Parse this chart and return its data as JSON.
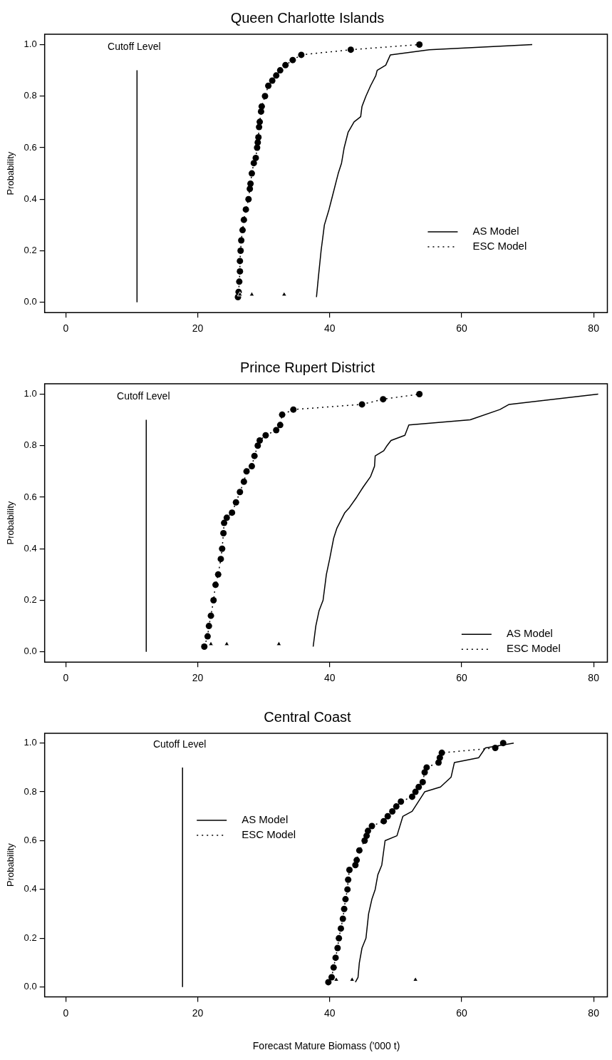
{
  "chart_data": [
    {
      "type": "line",
      "title": "Queen Charlotte Islands",
      "ylabel": "Probability",
      "xlim": [
        -3.2,
        82.2
      ],
      "xticks": [
        0,
        20,
        40,
        60,
        80
      ],
      "ylim": [
        -0.04,
        1.04
      ],
      "yticks": [
        {
          "value": 0,
          "label": "0.0"
        },
        {
          "value": 0.2,
          "label": "0.2"
        },
        {
          "value": 0.4,
          "label": "0.4"
        },
        {
          "value": 0.6,
          "label": "0.6"
        },
        {
          "value": 0.8,
          "label": "0.8"
        },
        {
          "value": 1,
          "label": "1.0"
        }
      ],
      "grid": false,
      "legend": "right",
      "series": [
        {
          "name": "AS Model",
          "color": "#000000",
          "line_style": "solid",
          "marker": "none",
          "x": [
            38.0,
            38.3,
            38.7,
            39.2,
            39.9,
            40.3,
            41.3,
            41.8,
            42.2,
            42.8,
            43.7,
            44.7,
            44.9,
            45.5,
            46.2,
            47.0,
            47.2,
            48.5,
            49.2,
            55.1,
            70.7
          ],
          "values": [
            0.02,
            0.1,
            0.2,
            0.3,
            0.36,
            0.4,
            0.5,
            0.54,
            0.6,
            0.66,
            0.7,
            0.72,
            0.76,
            0.8,
            0.84,
            0.88,
            0.9,
            0.92,
            0.96,
            0.98,
            1.0
          ]
        },
        {
          "name": "ESC Model",
          "color": "#000000",
          "line_style": "dotted",
          "marker": "circle",
          "x": [
            26.1,
            26.2,
            26.3,
            26.4,
            26.4,
            26.5,
            26.6,
            26.8,
            27.0,
            27.3,
            27.7,
            27.9,
            28.0,
            28.2,
            28.5,
            28.8,
            29.0,
            29.1,
            29.2,
            29.3,
            29.4,
            29.6,
            29.7,
            30.2,
            30.7,
            31.3,
            31.9,
            32.5,
            33.3,
            34.4,
            35.7,
            43.2,
            53.6
          ],
          "values": [
            0.02,
            0.04,
            0.08,
            0.12,
            0.16,
            0.2,
            0.24,
            0.28,
            0.32,
            0.36,
            0.4,
            0.44,
            0.46,
            0.5,
            0.54,
            0.56,
            0.6,
            0.62,
            0.64,
            0.68,
            0.7,
            0.74,
            0.76,
            0.8,
            0.84,
            0.86,
            0.88,
            0.9,
            0.92,
            0.94,
            0.96,
            0.98,
            1.0
          ]
        },
        {
          "color": "#000000",
          "line_style": "solid",
          "marker": "none",
          "x": [
            10.8,
            10.8
          ],
          "values": [
            0,
            0.9
          ]
        },
        {
          "type": "scatter",
          "color": "#000000",
          "marker": "triangle",
          "x": [
            26.4,
            28.2,
            33.1
          ],
          "values": [
            0.03,
            0.03,
            0.03
          ]
        }
      ],
      "annotations": [
        {
          "text": "Cutoff Level",
          "x": 10.8,
          "y": 0.9
        }
      ]
    },
    {
      "type": "line",
      "title": "Prince Rupert District",
      "ylabel": "Probability",
      "xlim": [
        -3.2,
        82.2
      ],
      "xticks": [
        0,
        20,
        40,
        60,
        80
      ],
      "ylim": [
        -0.04,
        1.04
      ],
      "yticks": [
        {
          "value": 0,
          "label": "0.0"
        },
        {
          "value": 0.2,
          "label": "0.2"
        },
        {
          "value": 0.4,
          "label": "0.4"
        },
        {
          "value": 0.6,
          "label": "0.6"
        },
        {
          "value": 0.8,
          "label": "0.8"
        },
        {
          "value": 1,
          "label": "1.0"
        }
      ],
      "grid": false,
      "legend": "bottom right",
      "series": [
        {
          "name": "AS Model",
          "color": "#000000",
          "line_style": "solid",
          "marker": "none",
          "x": [
            37.5,
            37.9,
            38.4,
            39.0,
            39.5,
            40.0,
            40.6,
            41.1,
            41.5,
            42.3,
            43.0,
            44.1,
            45.1,
            46.2,
            46.8,
            46.9,
            48.2,
            48.7,
            49.3,
            51.4,
            52.0,
            61.3,
            65.8,
            67.2,
            80.7
          ],
          "values": [
            0.02,
            0.1,
            0.16,
            0.2,
            0.3,
            0.36,
            0.44,
            0.48,
            0.5,
            0.54,
            0.56,
            0.6,
            0.64,
            0.68,
            0.72,
            0.76,
            0.78,
            0.8,
            0.82,
            0.84,
            0.88,
            0.9,
            0.94,
            0.96,
            1.0
          ]
        },
        {
          "name": "ESC Model",
          "color": "#000000",
          "line_style": "dotted",
          "marker": "circle",
          "x": [
            21.0,
            21.5,
            21.7,
            22.0,
            22.4,
            22.7,
            23.1,
            23.5,
            23.7,
            23.9,
            24.0,
            24.4,
            25.2,
            25.8,
            26.4,
            27.0,
            27.4,
            28.2,
            28.6,
            29.1,
            29.4,
            30.3,
            31.9,
            32.5,
            32.8,
            34.5,
            44.9,
            48.1,
            53.6
          ],
          "values": [
            0.02,
            0.06,
            0.1,
            0.14,
            0.2,
            0.26,
            0.3,
            0.36,
            0.4,
            0.46,
            0.5,
            0.52,
            0.54,
            0.58,
            0.62,
            0.66,
            0.7,
            0.72,
            0.76,
            0.8,
            0.82,
            0.84,
            0.86,
            0.88,
            0.92,
            0.94,
            0.96,
            0.98,
            1.0
          ]
        },
        {
          "color": "#000000",
          "line_style": "solid",
          "marker": "none",
          "x": [
            12.2,
            12.2
          ],
          "values": [
            0,
            0.9
          ]
        },
        {
          "type": "scatter",
          "color": "#000000",
          "marker": "triangle",
          "x": [
            22.0,
            24.4,
            32.3
          ],
          "values": [
            0.03,
            0.03,
            0.03
          ]
        }
      ],
      "annotations": [
        {
          "text": "Cutoff Level",
          "x": 12.2,
          "y": 0.9
        }
      ]
    },
    {
      "type": "line",
      "title": "Central Coast",
      "ylabel": "Probability",
      "xlabel": "Forecast Mature Biomass ('000 t)",
      "xlim": [
        -3.2,
        82.2
      ],
      "xticks": [
        0,
        20,
        40,
        60,
        80
      ],
      "ylim": [
        -0.04,
        1.04
      ],
      "yticks": [
        {
          "value": 0,
          "label": "0.0"
        },
        {
          "value": 0.2,
          "label": "0.2"
        },
        {
          "value": 0.4,
          "label": "0.4"
        },
        {
          "value": 0.6,
          "label": "0.6"
        },
        {
          "value": 0.8,
          "label": "0.8"
        },
        {
          "value": 1,
          "label": "1.0"
        }
      ],
      "grid": false,
      "legend": "top left",
      "series": [
        {
          "name": "AS Model",
          "color": "#000000",
          "line_style": "solid",
          "marker": "none",
          "x": [
            43.9,
            44.3,
            44.5,
            44.9,
            45.5,
            45.9,
            46.4,
            46.9,
            47.3,
            47.9,
            48.4,
            50.2,
            51.1,
            52.5,
            54.4,
            56.8,
            58.4,
            58.9,
            62.6,
            63.6,
            67.9
          ],
          "values": [
            0.02,
            0.04,
            0.1,
            0.16,
            0.2,
            0.3,
            0.36,
            0.4,
            0.46,
            0.5,
            0.6,
            0.62,
            0.7,
            0.72,
            0.8,
            0.82,
            0.86,
            0.92,
            0.94,
            0.98,
            1.0
          ]
        },
        {
          "name": "ESC Model",
          "color": "#000000",
          "line_style": "dotted",
          "marker": "circle",
          "x": [
            39.8,
            40.3,
            40.6,
            40.9,
            41.2,
            41.4,
            41.7,
            42.0,
            42.2,
            42.4,
            42.7,
            42.8,
            43.0,
            43.9,
            44.1,
            44.5,
            45.3,
            45.6,
            45.8,
            46.4,
            48.2,
            48.8,
            49.5,
            50.1,
            50.8,
            52.5,
            53.0,
            53.5,
            54.1,
            54.4,
            54.7,
            56.5,
            56.7,
            57.0,
            65.1,
            66.3
          ],
          "values": [
            0.02,
            0.04,
            0.08,
            0.12,
            0.16,
            0.2,
            0.24,
            0.28,
            0.32,
            0.36,
            0.4,
            0.44,
            0.48,
            0.5,
            0.52,
            0.56,
            0.6,
            0.62,
            0.64,
            0.66,
            0.68,
            0.7,
            0.72,
            0.74,
            0.76,
            0.78,
            0.8,
            0.82,
            0.84,
            0.88,
            0.9,
            0.92,
            0.94,
            0.96,
            0.98,
            1.0
          ]
        },
        {
          "color": "#000000",
          "line_style": "solid",
          "marker": "none",
          "x": [
            17.7,
            17.7
          ],
          "values": [
            0,
            0.9
          ]
        },
        {
          "type": "scatter",
          "color": "#000000",
          "marker": "triangle",
          "x": [
            41.0,
            43.4,
            53.0
          ],
          "values": [
            0.03,
            0.03,
            0.03
          ]
        }
      ],
      "annotations": [
        {
          "text": "Cutoff Level",
          "x": 17.7,
          "y": 0.9
        }
      ]
    }
  ]
}
